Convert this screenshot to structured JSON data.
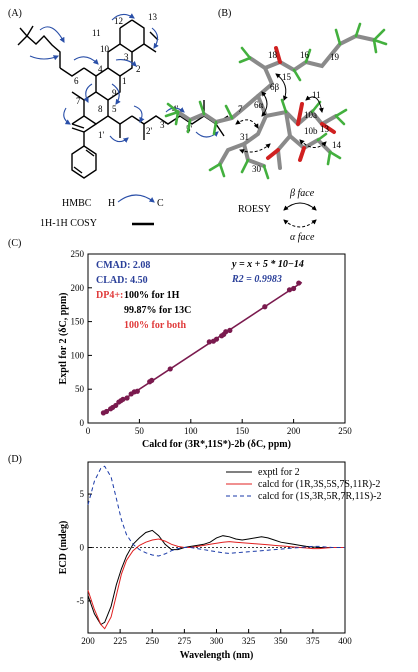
{
  "panels": {
    "A": {
      "label": "(A)"
    },
    "B": {
      "label": "(B)"
    },
    "C": {
      "label": "(C)"
    },
    "D": {
      "label": "(D)"
    }
  },
  "legend_ab": {
    "hmbc": "HMBC",
    "h": "H",
    "c": "C",
    "cosy": "1H-1H COSY",
    "roesy": "ROESY",
    "beta_face": "β face",
    "alpha_face": "α face"
  },
  "struct_a": {
    "numbers": [
      "11",
      "12",
      "13",
      "10",
      "3",
      "2",
      "1",
      "6",
      "4",
      "7",
      "9",
      "8",
      "5",
      "1'",
      "2'",
      "3'",
      "4'",
      "5'"
    ]
  },
  "struct_b": {
    "numbers": [
      "18",
      "16",
      "19",
      "15",
      "6β",
      "11",
      "10a",
      "7",
      "6α",
      "13",
      "10b",
      "31",
      "14",
      "30"
    ]
  },
  "chart_data": [
    {
      "type": "scatter",
      "panel": "C",
      "xlabel": "Calcd for (3R*,11S*)-2b (δC, ppm)",
      "ylabel": "Exptl for 2 (δC, ppm)",
      "xlim": [
        0,
        250
      ],
      "ylim": [
        0,
        250
      ],
      "xticks": [
        0,
        50,
        100,
        150,
        200,
        250
      ],
      "yticks": [
        0,
        50,
        100,
        150,
        200,
        250
      ],
      "stats": {
        "cmad": "CMAD: 2.08",
        "clad": "CLAD: 4.50",
        "dp4_label": "DP4+:",
        "dp4_h": "100% for 1H",
        "dp4_c": "99.87% for 13C",
        "dp4_both": "100% for both",
        "equation": "y = x + 5 * 10−14",
        "r2": "R2 = 0.9983"
      },
      "points": [
        [
          15,
          15
        ],
        [
          18,
          17
        ],
        [
          22,
          21
        ],
        [
          24,
          23
        ],
        [
          27,
          26
        ],
        [
          30,
          31
        ],
        [
          32,
          33
        ],
        [
          34,
          35
        ],
        [
          38,
          37
        ],
        [
          42,
          43
        ],
        [
          45,
          46
        ],
        [
          48,
          47
        ],
        [
          60,
          61
        ],
        [
          62,
          63
        ],
        [
          80,
          80
        ],
        [
          118,
          120
        ],
        [
          122,
          121
        ],
        [
          125,
          124
        ],
        [
          130,
          129
        ],
        [
          132,
          131
        ],
        [
          134,
          135
        ],
        [
          138,
          137
        ],
        [
          172,
          172
        ],
        [
          196,
          197
        ],
        [
          200,
          199
        ],
        [
          205,
          207
        ]
      ],
      "fit": [
        [
          14,
          14
        ],
        [
          208,
          208
        ]
      ],
      "colors": {
        "marker": "#7a1a4e",
        "line": "#7a1a4e",
        "stat_blue": "#2a3f99",
        "stat_red": "#e03a3a"
      }
    },
    {
      "type": "line",
      "panel": "D",
      "xlabel": "Wavelength (nm)",
      "ylabel": "ECD (mdeg)",
      "xlim": [
        200,
        400
      ],
      "ylim": [
        -8,
        8
      ],
      "xticks": [
        200,
        225,
        250,
        275,
        300,
        325,
        350,
        375,
        400
      ],
      "yticks": [
        -5,
        0,
        5
      ],
      "series": [
        {
          "name": "exptl for 2",
          "color": "#000000",
          "dash": "none",
          "x": [
            200,
            205,
            210,
            213,
            218,
            222,
            226,
            230,
            235,
            240,
            245,
            250,
            255,
            260,
            265,
            270,
            275,
            280,
            285,
            290,
            295,
            300,
            305,
            310,
            315,
            320,
            325,
            330,
            335,
            340,
            345,
            350,
            355,
            360,
            365,
            370,
            375,
            380,
            385,
            390,
            395,
            400
          ],
          "y": [
            -4.5,
            -6.2,
            -7.2,
            -7.0,
            -5.5,
            -3.5,
            -2.0,
            -0.8,
            0.3,
            0.9,
            1.4,
            1.6,
            1.1,
            0.3,
            -0.2,
            -0.2,
            0.0,
            0.1,
            0.2,
            0.3,
            0.5,
            0.9,
            1.1,
            1.0,
            0.8,
            0.7,
            0.8,
            0.9,
            1.0,
            0.9,
            0.7,
            0.5,
            0.4,
            0.3,
            0.2,
            0.1,
            0.05,
            0.0,
            0.0,
            0.0,
            0.0,
            0.0
          ]
        },
        {
          "name": "calcd for (1R,3S,5S,7S,11R)-2",
          "color": "#e02020",
          "dash": "none",
          "x": [
            200,
            205,
            210,
            213,
            218,
            222,
            226,
            230,
            235,
            240,
            245,
            250,
            255,
            260,
            265,
            270,
            275,
            280,
            285,
            290,
            295,
            300,
            305,
            310,
            315,
            320,
            325,
            330,
            335,
            340,
            345,
            350,
            355,
            360,
            365,
            370,
            375,
            380,
            385,
            390,
            395,
            400
          ],
          "y": [
            -4.0,
            -5.8,
            -7.2,
            -7.6,
            -6.5,
            -4.5,
            -2.5,
            -1.2,
            -0.3,
            0.2,
            0.5,
            0.7,
            0.8,
            0.6,
            0.3,
            0.1,
            0.0,
            0.0,
            0.1,
            0.2,
            0.3,
            0.4,
            0.5,
            0.55,
            0.5,
            0.45,
            0.4,
            0.35,
            0.3,
            0.25,
            0.2,
            0.15,
            0.1,
            0.05,
            0.0,
            -0.05,
            -0.1,
            -0.1,
            -0.05,
            0.0,
            0.0,
            0.0
          ]
        },
        {
          "name": "calcd for (1S,3R,5R,7R,11S)-2",
          "color": "#1a3aa8",
          "dash": "4,3",
          "x": [
            200,
            205,
            210,
            213,
            218,
            222,
            226,
            230,
            235,
            240,
            245,
            250,
            255,
            260,
            265,
            270,
            275,
            280,
            285,
            290,
            295,
            300,
            305,
            310,
            315,
            320,
            325,
            330,
            335,
            340,
            345,
            350,
            355,
            360,
            365,
            370,
            375,
            380,
            385,
            390,
            395,
            400
          ],
          "y": [
            4.0,
            6.2,
            7.4,
            7.6,
            6.6,
            4.6,
            2.6,
            1.2,
            0.3,
            -0.2,
            -0.5,
            -0.7,
            -0.8,
            -0.6,
            -0.3,
            -0.1,
            0.0,
            0.0,
            -0.1,
            -0.2,
            -0.3,
            -0.4,
            -0.5,
            -0.55,
            -0.5,
            -0.45,
            -0.4,
            -0.35,
            -0.3,
            -0.25,
            -0.2,
            -0.15,
            -0.1,
            -0.05,
            0.0,
            0.05,
            0.1,
            0.1,
            0.05,
            0.0,
            0.0,
            0.0
          ]
        }
      ],
      "legend_position": "top-right"
    }
  ]
}
